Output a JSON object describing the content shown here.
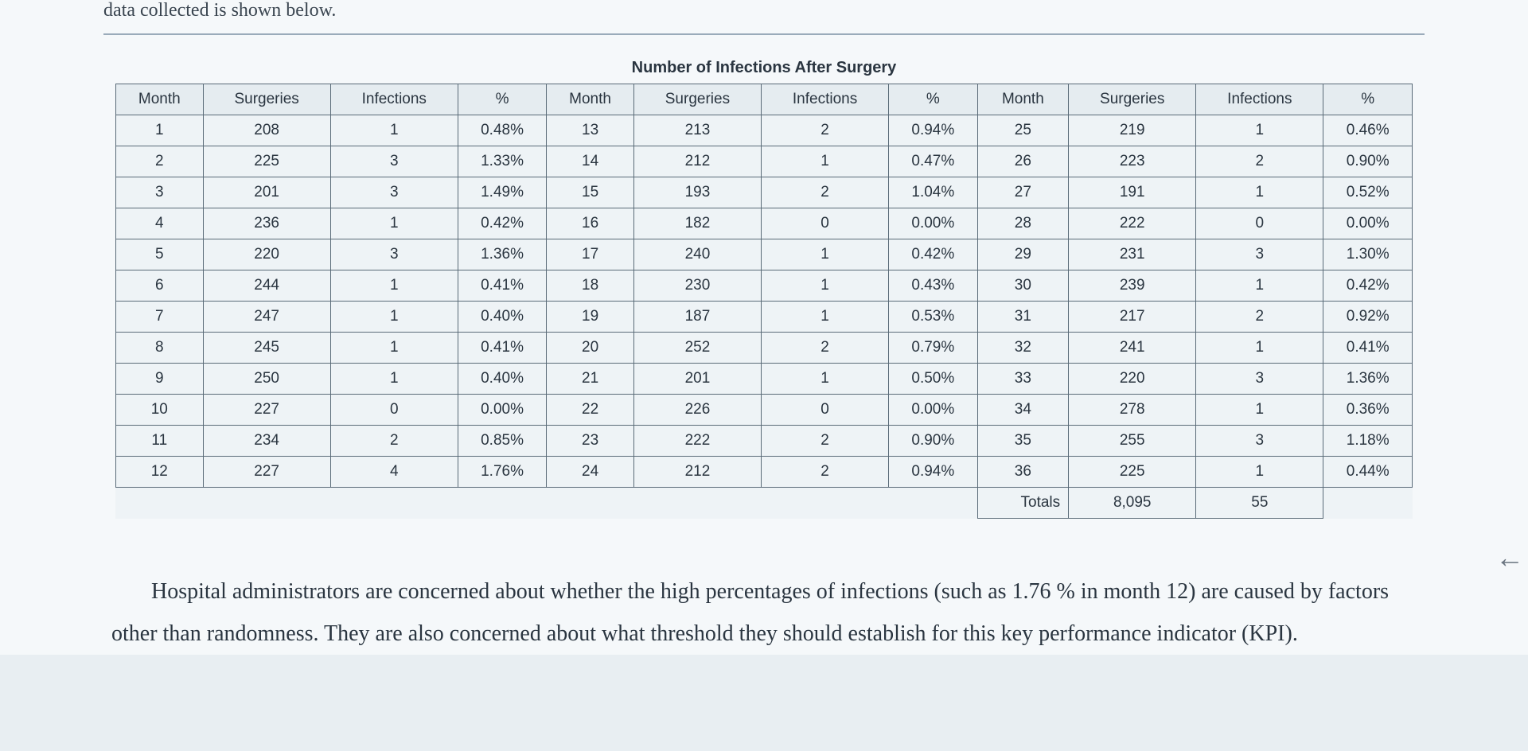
{
  "introText": "data collected is shown below.",
  "tableTitle": "Number of Infections After Surgery",
  "headers": [
    "Month",
    "Surgeries",
    "Infections",
    "%",
    "Month",
    "Surgeries",
    "Infections",
    "%",
    "Month",
    "Surgeries",
    "Infections",
    "%"
  ],
  "rows": [
    [
      "1",
      "208",
      "1",
      "0.48%",
      "13",
      "213",
      "2",
      "0.94%",
      "25",
      "219",
      "1",
      "0.46%"
    ],
    [
      "2",
      "225",
      "3",
      "1.33%",
      "14",
      "212",
      "1",
      "0.47%",
      "26",
      "223",
      "2",
      "0.90%"
    ],
    [
      "3",
      "201",
      "3",
      "1.49%",
      "15",
      "193",
      "2",
      "1.04%",
      "27",
      "191",
      "1",
      "0.52%"
    ],
    [
      "4",
      "236",
      "1",
      "0.42%",
      "16",
      "182",
      "0",
      "0.00%",
      "28",
      "222",
      "0",
      "0.00%"
    ],
    [
      "5",
      "220",
      "3",
      "1.36%",
      "17",
      "240",
      "1",
      "0.42%",
      "29",
      "231",
      "3",
      "1.30%"
    ],
    [
      "6",
      "244",
      "1",
      "0.41%",
      "18",
      "230",
      "1",
      "0.43%",
      "30",
      "239",
      "1",
      "0.42%"
    ],
    [
      "7",
      "247",
      "1",
      "0.40%",
      "19",
      "187",
      "1",
      "0.53%",
      "31",
      "217",
      "2",
      "0.92%"
    ],
    [
      "8",
      "245",
      "1",
      "0.41%",
      "20",
      "252",
      "2",
      "0.79%",
      "32",
      "241",
      "1",
      "0.41%"
    ],
    [
      "9",
      "250",
      "1",
      "0.40%",
      "21",
      "201",
      "1",
      "0.50%",
      "33",
      "220",
      "3",
      "1.36%"
    ],
    [
      "10",
      "227",
      "0",
      "0.00%",
      "22",
      "226",
      "0",
      "0.00%",
      "34",
      "278",
      "1",
      "0.36%"
    ],
    [
      "11",
      "234",
      "2",
      "0.85%",
      "23",
      "222",
      "2",
      "0.90%",
      "35",
      "255",
      "3",
      "1.18%"
    ],
    [
      "12",
      "227",
      "4",
      "1.76%",
      "24",
      "212",
      "2",
      "0.94%",
      "36",
      "225",
      "1",
      "0.44%"
    ]
  ],
  "totals": {
    "label": "Totals",
    "surgeries": "8,095",
    "infections": "55"
  },
  "bodyParagraph": "Hospital administrators are concerned about whether the high percentages of infections (such as 1.76 % in month 12) are caused by factors other than randomness. They are also concerned about what threshold they should establish for this key performance indicator (KPI).",
  "backArrow": "←",
  "styling": {
    "page_background": "#e8eef2",
    "content_background": "#f5f8fa",
    "table_cell_background": "#eef3f6",
    "table_header_background": "#e5ecf0",
    "border_color": "#5a6b78",
    "text_color": "#2a3540",
    "divider_color": "#9aabba",
    "table_font_size": 19,
    "body_font_size": 28,
    "title_font_size": 20,
    "body_font_family": "Georgia",
    "table_font_family": "Arial"
  }
}
